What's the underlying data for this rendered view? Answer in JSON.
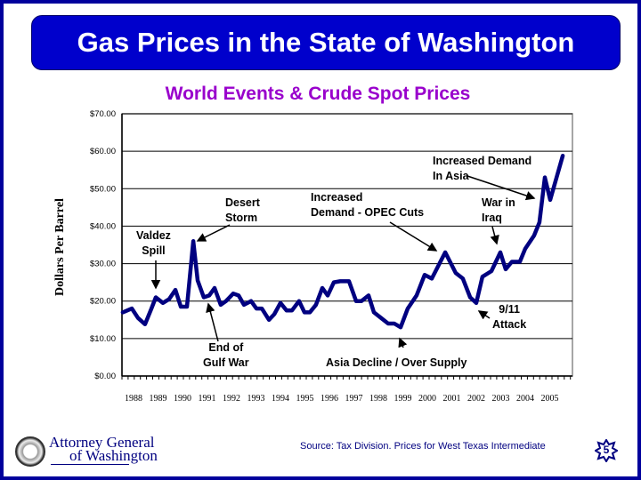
{
  "header": {
    "title": "Gas Prices in the State of Washington"
  },
  "chart_data": {
    "type": "line",
    "title": "World Events & Crude Spot Prices",
    "ylabel": "Dollars Per Barrel",
    "xlabel": "",
    "ylim": [
      0,
      70
    ],
    "y_ticks": [
      "$0.00",
      "$10.00",
      "$20.00",
      "$30.00",
      "$40.00",
      "$50.00",
      "$60.00",
      "$70.00"
    ],
    "x_ticks": [
      "1988",
      "1989",
      "1990",
      "1991",
      "1992",
      "1993",
      "1994",
      "1995",
      "1996",
      "1997",
      "1998",
      "1999",
      "2000",
      "2001",
      "2002",
      "2003",
      "2004",
      "2005"
    ],
    "grid": true,
    "color": "#000080",
    "x": [
      1987.56,
      1987.93,
      1988.18,
      1988.47,
      1988.73,
      1988.91,
      1989.2,
      1989.45,
      1989.71,
      1989.93,
      1990.18,
      1990.44,
      1990.62,
      1990.87,
      1991.09,
      1991.31,
      1991.56,
      1991.78,
      1992.07,
      1992.29,
      1992.51,
      1992.8,
      1993.02,
      1993.24,
      1993.53,
      1993.75,
      1994.0,
      1994.25,
      1994.47,
      1994.76,
      1994.98,
      1995.2,
      1995.45,
      1995.71,
      1995.93,
      1996.18,
      1996.44,
      1996.8,
      1997.09,
      1997.31,
      1997.6,
      1997.82,
      1998.11,
      1998.4,
      1998.65,
      1998.91,
      1999.2,
      1999.56,
      1999.89,
      2000.18,
      2000.73,
      2001.16,
      2001.45,
      2001.75,
      2002.0,
      2002.25,
      2002.62,
      2002.98,
      2003.2,
      2003.45,
      2003.78,
      2004.0,
      2004.36,
      2004.58,
      2004.8,
      2005.02,
      2005.53
    ],
    "values": [
      17,
      18,
      15.5,
      13.8,
      18,
      21,
      19.5,
      20.5,
      23,
      18.5,
      18.5,
      36,
      25.5,
      21,
      21.5,
      23.5,
      19,
      20,
      22,
      21.5,
      19,
      20,
      18,
      18,
      15,
      16.5,
      19.5,
      17.5,
      17.5,
      20,
      17,
      17,
      19,
      23.5,
      21.5,
      25,
      25.3,
      25.3,
      20,
      20,
      21.5,
      17,
      15.5,
      14,
      14,
      13,
      18,
      21.5,
      27,
      26,
      33,
      27.5,
      26,
      21,
      19.5,
      26.5,
      28,
      33,
      28.5,
      30.5,
      30.5,
      34,
      37.5,
      41,
      53,
      47,
      58.8
    ],
    "annotations": [
      {
        "id": "valdez",
        "lines": [
          "Valdez",
          "Spill"
        ]
      },
      {
        "id": "desert",
        "lines": [
          "Desert",
          "Storm"
        ]
      },
      {
        "id": "gulf",
        "lines": [
          "End of",
          "Gulf War"
        ]
      },
      {
        "id": "opec",
        "lines": [
          "Increased",
          "Demand  - OPEC Cuts"
        ]
      },
      {
        "id": "asia-decline",
        "lines": [
          "Asia Decline / Over Supply"
        ]
      },
      {
        "id": "asia-demand",
        "lines": [
          "Increased Demand",
          "In Asia"
        ]
      },
      {
        "id": "iraq",
        "lines": [
          "War in",
          "Iraq"
        ]
      },
      {
        "id": "nine-eleven",
        "lines": [
          "9/11",
          "Attack"
        ]
      }
    ]
  },
  "footer": {
    "org_line1": "Attorney General",
    "org_line2": "of Washington",
    "source": "Source: Tax Division.  Prices for West Texas Intermediate",
    "page_number": "5"
  }
}
